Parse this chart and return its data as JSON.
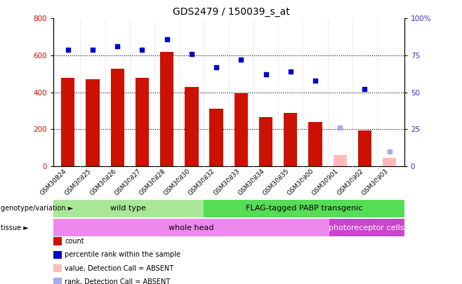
{
  "title": "GDS2479 / 150039_s_at",
  "samples": [
    "GSM30824",
    "GSM30825",
    "GSM30826",
    "GSM30827",
    "GSM30828",
    "GSM30830",
    "GSM30832",
    "GSM30833",
    "GSM30834",
    "GSM30835",
    "GSM30900",
    "GSM30901",
    "GSM30902",
    "GSM30903"
  ],
  "counts": [
    480,
    472,
    528,
    478,
    620,
    430,
    310,
    395,
    265,
    290,
    240,
    60,
    195,
    45
  ],
  "ranks": [
    79,
    79,
    81,
    79,
    86,
    76,
    67,
    72,
    62,
    64,
    58,
    26,
    52,
    10
  ],
  "absent": [
    false,
    false,
    false,
    false,
    false,
    false,
    false,
    false,
    false,
    false,
    false,
    true,
    false,
    true
  ],
  "ylim_left": [
    0,
    800
  ],
  "ylim_right": [
    0,
    100
  ],
  "left_ticks": [
    0,
    200,
    400,
    600,
    800
  ],
  "right_ticks": [
    0,
    25,
    50,
    75,
    100
  ],
  "bar_color_normal": "#cc1100",
  "bar_color_absent": "#ffbbbb",
  "dot_color_normal": "#0000cc",
  "dot_color_absent": "#aaaaee",
  "genotype_labels": [
    "wild type",
    "FLAG-tagged PABP transgenic"
  ],
  "tissue_labels": [
    "whole head",
    "photoreceptor cells"
  ],
  "genotype_color1": "#aae899",
  "genotype_color2": "#55dd55",
  "tissue_color1": "#ee88ee",
  "tissue_color2": "#cc44cc",
  "wt_count": 6,
  "wh_count": 11,
  "legend_items": [
    {
      "label": "count",
      "color": "#cc1100"
    },
    {
      "label": "percentile rank within the sample",
      "color": "#0000cc"
    },
    {
      "label": "value, Detection Call = ABSENT",
      "color": "#ffbbbb"
    },
    {
      "label": "rank, Detection Call = ABSENT",
      "color": "#aaaaee"
    }
  ]
}
